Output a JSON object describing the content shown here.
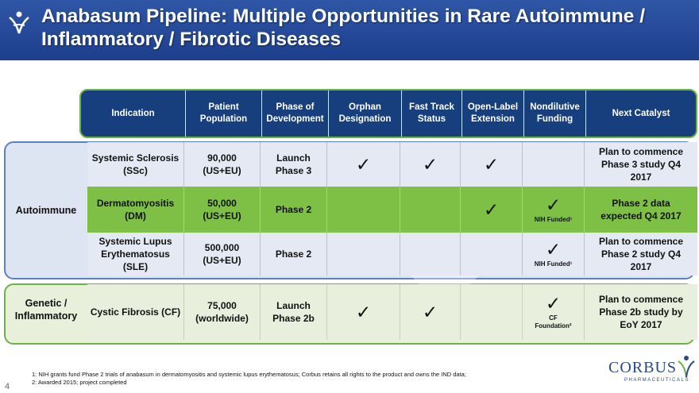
{
  "title": "Anabasum Pipeline: Multiple Opportunities in Rare Autoimmune /\nInflammatory / Fibrotic Diseases",
  "headers": [
    "Indication",
    "Patient\nPopulation",
    "Phase of\nDevelopment",
    "Orphan\nDesignation",
    "Fast Track\nStatus",
    "Open-Label\nExtension",
    "Nondilutive\nFunding",
    "Next Catalyst"
  ],
  "groups": {
    "autoimmune": "Autoimmune",
    "genetic": "Genetic /\nInflammatory"
  },
  "rows": [
    {
      "indication": "Systemic Sclerosis\n(SSc)",
      "population": "90,000\n(US+EU)",
      "phase": "Launch\nPhase 3",
      "orphan": "✓",
      "fast_track": "✓",
      "open_label": "✓",
      "funding": "",
      "funding_note": "",
      "catalyst": "Plan to commence\nPhase 3 study Q4\n2017"
    },
    {
      "indication": "Dermatomyositis\n(DM)",
      "population": "50,000\n(US+EU)",
      "phase": "Phase 2",
      "orphan": "",
      "fast_track": "",
      "open_label": "✓",
      "funding": "✓",
      "funding_note": "NIH Funded¹",
      "catalyst": "Phase 2 data\nexpected Q4 2017"
    },
    {
      "indication": "Systemic Lupus\nErythematosus\n(SLE)",
      "population": "500,000\n(US+EU)",
      "phase": "Phase 2",
      "orphan": "",
      "fast_track": "",
      "open_label": "",
      "funding": "✓",
      "funding_note": "NIH Funded¹",
      "catalyst": "Plan to commence\nPhase 2 study Q4\n2017"
    },
    {
      "indication": "Cystic Fibrosis (CF)",
      "population": "75,000\n(worldwide)",
      "phase": "Launch\nPhase 2b",
      "orphan": "✓",
      "fast_track": "✓",
      "open_label": "",
      "funding": "✓",
      "funding_note": "CF\nFoundation²",
      "catalyst": "Plan to commence\nPhase 2b study by\nEoY 2017"
    }
  ],
  "footnotes": [
    "1: NIH grants fund Phase 2 trials of anabasum in dermatomyositis and systemic lupus erythematosus; Corbus retains all rights to the product and owns the IND data;",
    "2: Awarded 2015; project completed"
  ],
  "slide_number": "4",
  "logo": {
    "name": "CORBUS",
    "sub": "PHARMACEUTICALS"
  },
  "colors": {
    "banner": "#1d3f8c",
    "header": "#173f7e",
    "accent_green": "#7ec045",
    "accent_blue": "#5b80c6"
  }
}
